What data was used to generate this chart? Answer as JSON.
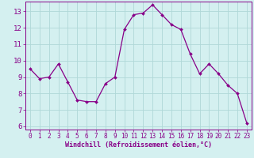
{
  "x": [
    0,
    1,
    2,
    3,
    4,
    5,
    6,
    7,
    8,
    9,
    10,
    11,
    12,
    13,
    14,
    15,
    16,
    17,
    18,
    19,
    20,
    21,
    22,
    23
  ],
  "y": [
    9.5,
    8.9,
    9.0,
    9.8,
    8.7,
    7.6,
    7.5,
    7.5,
    8.6,
    9.0,
    11.9,
    12.8,
    12.9,
    13.4,
    12.8,
    12.2,
    11.9,
    10.4,
    9.2,
    9.8,
    9.2,
    8.5,
    8.0,
    6.2
  ],
  "line_color": "#880088",
  "marker_color": "#880088",
  "bg_color": "#d4f0f0",
  "grid_color": "#b0d8d8",
  "xlabel": "Windchill (Refroidissement éolien,°C)",
  "xlim": [
    -0.5,
    23.5
  ],
  "ylim": [
    5.8,
    13.6
  ],
  "yticks": [
    6,
    7,
    8,
    9,
    10,
    11,
    12,
    13
  ],
  "xticks": [
    0,
    1,
    2,
    3,
    4,
    5,
    6,
    7,
    8,
    9,
    10,
    11,
    12,
    13,
    14,
    15,
    16,
    17,
    18,
    19,
    20,
    21,
    22,
    23
  ],
  "tick_color": "#880088",
  "xlabel_fontsize": 6.0,
  "ytick_fontsize": 6.5,
  "xtick_fontsize": 5.5
}
